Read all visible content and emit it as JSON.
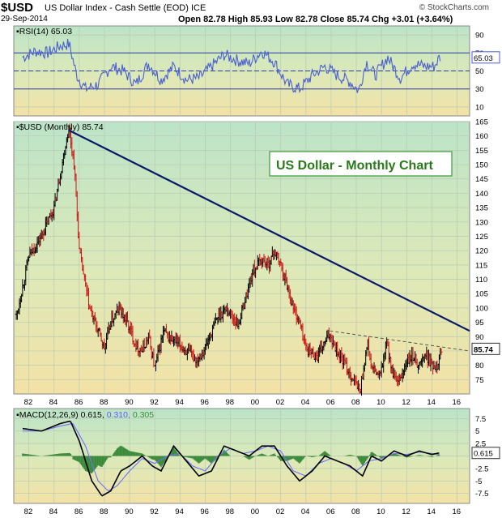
{
  "header": {
    "ticker": "$USD",
    "description": "US Dollar Index - Cash Settle (EOD) ICE",
    "date": "29-Sep-2014",
    "ohlc": "Open 82.78  High 85.93  Low 82.78  Close 85.74  Chg +3.01 (+3.64%)",
    "credit": "© StockCharts.com"
  },
  "colors": {
    "rsi_line": "#4a5fd0",
    "price_up": "#000000",
    "price_down": "#cc1111",
    "trendline": "#0a1a6a",
    "macd_line": "#000000",
    "signal_line": "#7070ff",
    "histogram": "#3a8a3a",
    "annotation_border": "#3a9a3a",
    "annotation_text": "#2a7a1a"
  },
  "chart_data": [
    {
      "type": "line",
      "title": "RSI(14) 65.03",
      "current_value_label": "65.03",
      "ylim": [
        0,
        100
      ],
      "yticks": [
        10,
        30,
        50,
        70,
        90
      ],
      "reference_lines": [
        30,
        50,
        70
      ],
      "grid": true,
      "x": [
        1981.5,
        1982.5,
        1983.5,
        1984.5,
        1985.2,
        1985.8,
        1986.5,
        1987.5,
        1988.5,
        1989.5,
        1990.5,
        1991.5,
        1992.5,
        1993.5,
        1994.5,
        1995.5,
        1996.5,
        1997.5,
        1998.5,
        1999.5,
        2000.5,
        2001.5,
        2002.5,
        2003.5,
        2004.5,
        2005.5,
        2006.5,
        2007.5,
        2008.2,
        2008.8,
        2009.5,
        2010.5,
        2011.5,
        2012.5,
        2013.5,
        2014.2,
        2014.6
      ],
      "values": [
        65,
        72,
        70,
        78,
        80,
        45,
        30,
        35,
        55,
        50,
        35,
        58,
        40,
        55,
        40,
        42,
        55,
        68,
        62,
        58,
        72,
        60,
        35,
        30,
        45,
        55,
        45,
        38,
        28,
        60,
        45,
        65,
        42,
        58,
        55,
        55,
        65
      ]
    },
    {
      "type": "line",
      "title": "$USD (Monthly) 85.74",
      "current_value_label": "85.74",
      "ylim": [
        70,
        165
      ],
      "yticks": [
        75,
        80,
        85,
        90,
        95,
        100,
        105,
        110,
        115,
        120,
        125,
        130,
        135,
        140,
        145,
        150,
        155,
        160,
        165
      ],
      "xlim": [
        1980.8,
        2017
      ],
      "xticks": [
        "82",
        "84",
        "86",
        "88",
        "90",
        "92",
        "94",
        "96",
        "98",
        "00",
        "02",
        "04",
        "06",
        "08",
        "10",
        "12",
        "14",
        "16"
      ],
      "grid": true,
      "annotation": "US Dollar - Monthly Chart",
      "x": [
        1981.0,
        1982.0,
        1983.0,
        1984.0,
        1985.17,
        1985.6,
        1986.0,
        1986.8,
        1987.5,
        1988.0,
        1988.5,
        1989.2,
        1989.8,
        1990.5,
        1991.0,
        1991.5,
        1992.0,
        1992.7,
        1993.0,
        1994.0,
        1995.3,
        1996.0,
        1997.0,
        1997.7,
        1998.6,
        1999.0,
        1999.8,
        2000.5,
        2001.0,
        2001.5,
        2002.0,
        2002.5,
        2003.0,
        2003.5,
        2004.0,
        2004.9,
        2005.9,
        2006.5,
        2007.5,
        2008.3,
        2008.9,
        2009.2,
        2009.9,
        2010.4,
        2010.9,
        2011.3,
        2012.0,
        2012.5,
        2013.0,
        2013.5,
        2014.0,
        2014.4,
        2014.75
      ],
      "values": [
        97,
        118,
        125,
        135,
        163,
        150,
        120,
        100,
        92,
        86,
        95,
        100,
        95,
        87,
        85,
        90,
        79,
        92,
        90,
        87,
        82,
        86,
        97,
        100,
        94,
        100,
        113,
        117,
        115,
        120,
        115,
        108,
        100,
        95,
        86,
        83,
        91,
        85,
        77,
        71,
        88,
        79,
        76,
        88,
        77,
        73,
        81,
        83,
        80,
        84,
        80,
        80,
        85.74
      ],
      "trendlines": [
        {
          "style": "solid",
          "points": [
            [
              1985.17,
              162
            ],
            [
              2017,
              92
            ]
          ]
        },
        {
          "style": "dashed",
          "points": [
            [
              2005.9,
              92
            ],
            [
              2017,
              85
            ]
          ]
        }
      ]
    },
    {
      "type": "line",
      "title": "MACD(12,26,9) 0.615, 0.310, 0.305",
      "current_value_label": "0.615",
      "ylim": [
        -9.5,
        9.5
      ],
      "yticks": [
        -7.5,
        -5.0,
        -2.5,
        0.0,
        2.5,
        5.0,
        7.5
      ],
      "grid": true,
      "series": [
        {
          "name": "MACD(12,26,9) 0.615",
          "x": [
            1981.5,
            1983.0,
            1984.5,
            1985.3,
            1986.0,
            1987.0,
            1987.8,
            1988.5,
            1989.3,
            1990.0,
            1991.0,
            1991.8,
            1992.5,
            1993.5,
            1994.5,
            1995.5,
            1996.5,
            1997.5,
            1998.5,
            1999.5,
            2000.5,
            2001.5,
            2002.5,
            2003.5,
            2004.5,
            2005.5,
            2006.5,
            2007.5,
            2008.5,
            2009.2,
            2010.0,
            2011.0,
            2012.0,
            2013.0,
            2014.0,
            2014.6
          ],
          "values": [
            5.5,
            5,
            6.5,
            7,
            3,
            -5,
            -8,
            -7,
            -3,
            -2,
            0,
            -2,
            -3,
            2,
            -1,
            -4,
            -3,
            2,
            1,
            0,
            2,
            2,
            -2,
            -5,
            -3,
            0,
            -1,
            -2,
            -4,
            0,
            -1,
            1,
            0,
            1,
            0.3,
            0.615
          ]
        },
        {
          "name": "Signal 0.310",
          "x": [
            1981.5,
            1983.0,
            1984.5,
            1985.5,
            1986.5,
            1987.5,
            1988.3,
            1989.0,
            1990.0,
            1991.0,
            1992.0,
            1993.0,
            1994.0,
            1995.0,
            1996.0,
            1997.0,
            1998.0,
            1999.0,
            2000.0,
            2001.0,
            2002.0,
            2003.0,
            2004.0,
            2005.0,
            2006.0,
            2007.0,
            2008.0,
            2009.0,
            2010.0,
            2011.0,
            2012.0,
            2013.0,
            2014.0,
            2014.6
          ],
          "values": [
            5,
            5,
            6,
            6.5,
            2,
            -5,
            -7,
            -6,
            -3,
            -0.5,
            -1.5,
            0,
            0.5,
            -2,
            -3,
            0,
            1.5,
            0.5,
            1,
            2,
            1,
            -3,
            -4,
            -1.5,
            -0.5,
            -1.5,
            -3,
            -1,
            -0.5,
            0.5,
            0.3,
            0.8,
            0.5,
            0.31
          ]
        }
      ],
      "histogram_label": "0.305"
    }
  ]
}
